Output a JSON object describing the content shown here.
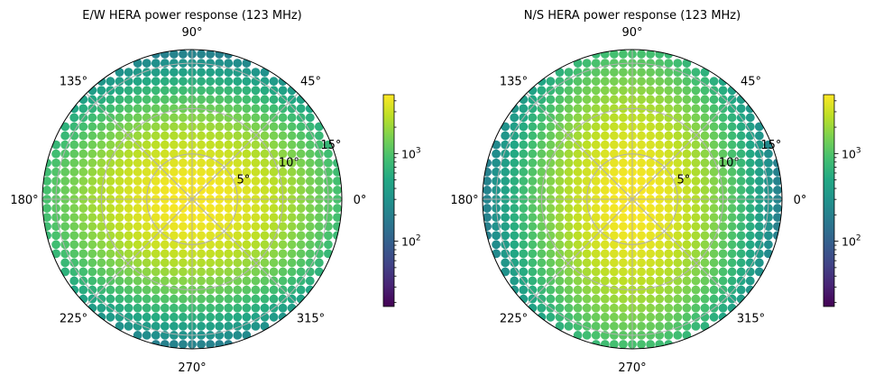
{
  "chart_data": [
    {
      "type": "scatter",
      "projection": "polar",
      "title": "E/W HERA power response (123 MHz)",
      "theta_tick_labels": [
        "0°",
        "45°",
        "90°",
        "135°",
        "180°",
        "225°",
        "270°",
        "315°"
      ],
      "r_tick_labels": [
        "5°",
        "10°",
        "15°"
      ],
      "r_ticks": [
        5,
        10,
        15
      ],
      "r_max": 16.5,
      "color_scale": "log",
      "colormap": "viridis",
      "colorbar_tick_labels": [
        "10^2",
        "10^3"
      ],
      "colorbar_ticks": [
        100,
        1000
      ],
      "colorbar_range": [
        18,
        4700
      ],
      "beam_peak": 4500,
      "beam_width_deg": [
        9.0,
        6.5
      ],
      "grid": true
    },
    {
      "type": "scatter",
      "projection": "polar",
      "title": "N/S HERA power response (123 MHz)",
      "theta_tick_labels": [
        "0°",
        "45°",
        "90°",
        "135°",
        "180°",
        "225°",
        "270°",
        "315°"
      ],
      "r_tick_labels": [
        "5°",
        "10°",
        "15°"
      ],
      "r_ticks": [
        5,
        10,
        15
      ],
      "r_max": 16.5,
      "color_scale": "log",
      "colormap": "viridis",
      "colorbar_tick_labels": [
        "10^2",
        "10^3"
      ],
      "colorbar_ticks": [
        100,
        1000
      ],
      "colorbar_range": [
        18,
        4700
      ],
      "beam_peak": 4500,
      "beam_width_deg": [
        6.5,
        9.0
      ],
      "grid": true
    }
  ]
}
